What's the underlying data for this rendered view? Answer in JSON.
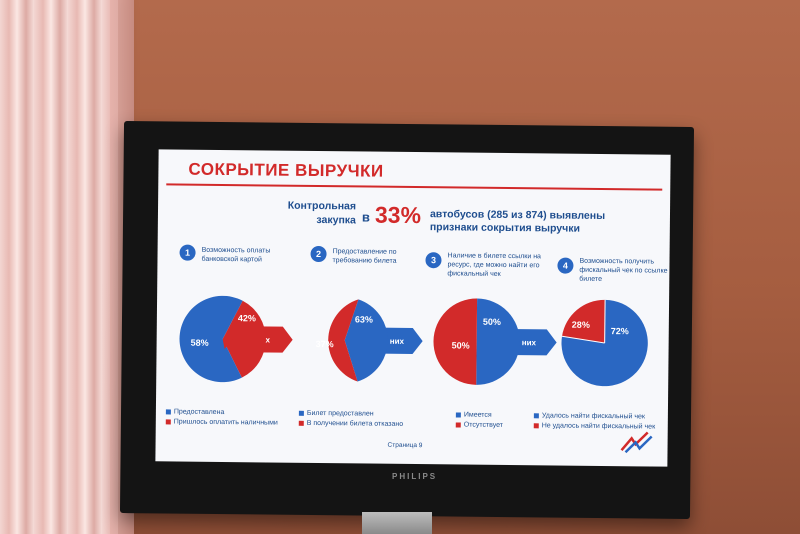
{
  "colors": {
    "blue": "#2a67c2",
    "red": "#d22a2a",
    "text_blue": "#1f4e8f"
  },
  "slide": {
    "title": "СОКРЫТИЕ ВЫРУЧКИ",
    "subtitle_left": "Контрольная закупка",
    "subtitle_in": "в",
    "subtitle_percent": "33%",
    "subtitle_right": "автобусов (285 из 874) выявлены признаки сокрытия выручки",
    "arrow_text": "из них",
    "page": "Страница 9",
    "items": [
      {
        "number": "1",
        "text": "Возможность оплаты банковской картой"
      },
      {
        "number": "2",
        "text": "Предоставление по требованию билета"
      },
      {
        "number": "3",
        "text": "Наличие в билете ссылки на ресурс, где можно найти его фискальный чек"
      },
      {
        "number": "4",
        "text": "Возможность получить фискальный чек по ссылке на билете"
      }
    ],
    "legends": [
      [
        "Предоставлена",
        "Пришлось оплатить наличными"
      ],
      [
        "Билет предоставлен",
        "В получении билета отказано"
      ],
      [
        "Имеется",
        "Отсутствует"
      ],
      [
        "Удалось найти фискальный чек",
        "Не удалось найти фискальный чек"
      ]
    ]
  },
  "tv_brand": "PHILIPS",
  "chart_data": [
    {
      "type": "pie",
      "categories": [
        "Предоставлена",
        "Пришлось оплатить наличными"
      ],
      "values": [
        58,
        42
      ],
      "labels": [
        "58%",
        "42%"
      ]
    },
    {
      "type": "pie",
      "categories": [
        "Билет предоставлен",
        "В получении билета отказано"
      ],
      "values": [
        63,
        37
      ],
      "labels": [
        "63%",
        "37%"
      ]
    },
    {
      "type": "pie",
      "categories": [
        "Имеется",
        "Отсутствует"
      ],
      "values": [
        50,
        50
      ],
      "labels": [
        "50%",
        "50%"
      ]
    },
    {
      "type": "pie",
      "categories": [
        "Удалось найти фискальный чек",
        "Не удалось найти фискальный чек"
      ],
      "values": [
        72,
        28
      ],
      "labels": [
        "72%",
        "28%"
      ]
    }
  ]
}
